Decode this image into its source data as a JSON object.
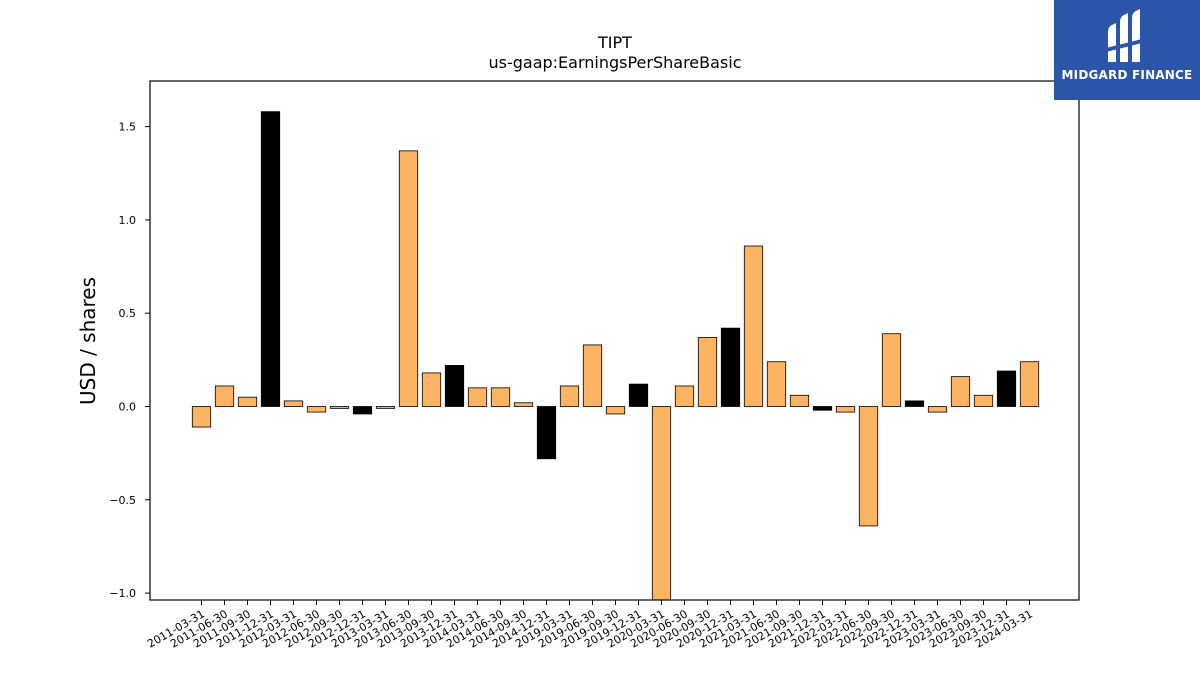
{
  "brand": {
    "name": "MIDGARD FINANCE",
    "background": "#2a55a8"
  },
  "chart_data": {
    "type": "bar",
    "title": "TIPT",
    "subtitle": "us-gaap:EarningsPerShareBasic",
    "xlabel": "",
    "ylabel": "USD / shares",
    "ylim": [
      -1.04,
      1.75
    ],
    "yticks": [
      -1.0,
      -0.5,
      0.0,
      0.5,
      1.0,
      1.5
    ],
    "ytick_labels": [
      "−1.0",
      "−0.5",
      "0.0",
      "0.5",
      "1.0",
      "1.5"
    ],
    "grid": false,
    "colors": {
      "quarter": "#fdb462",
      "year_end": "#000000",
      "edge": "#000000"
    },
    "categories": [
      "2011-03-31",
      "2011-06-30",
      "2011-09-30",
      "2011-12-31",
      "2012-03-31",
      "2012-06-30",
      "2012-09-30",
      "2012-12-31",
      "2013-03-31",
      "2013-06-30",
      "2013-09-30",
      "2013-12-31",
      "2014-03-31",
      "2014-06-30",
      "2014-09-30",
      "2014-12-31",
      "2019-03-31",
      "2019-06-30",
      "2019-09-30",
      "2019-12-31",
      "2020-03-31",
      "2020-06-30",
      "2020-09-30",
      "2020-12-31",
      "2021-03-31",
      "2021-06-30",
      "2021-09-30",
      "2021-12-31",
      "2022-03-31",
      "2022-06-30",
      "2022-09-30",
      "2022-12-31",
      "2023-03-31",
      "2023-06-30",
      "2023-09-30",
      "2023-12-31",
      "2024-03-31"
    ],
    "values": [
      -0.11,
      0.11,
      0.05,
      1.58,
      0.03,
      -0.03,
      -0.01,
      -0.04,
      -0.01,
      1.37,
      0.18,
      0.22,
      0.1,
      0.1,
      0.02,
      -0.28,
      0.11,
      0.33,
      -0.04,
      0.12,
      -1.04,
      0.11,
      0.37,
      0.42,
      0.86,
      0.24,
      0.06,
      -0.02,
      -0.03,
      -0.64,
      0.39,
      0.03,
      -0.03,
      0.16,
      0.06,
      0.19,
      0.24
    ],
    "year_end": [
      false,
      false,
      false,
      true,
      false,
      false,
      false,
      true,
      false,
      false,
      false,
      true,
      false,
      false,
      false,
      true,
      false,
      false,
      false,
      true,
      false,
      false,
      false,
      true,
      false,
      false,
      false,
      true,
      false,
      false,
      false,
      true,
      false,
      false,
      false,
      true,
      false
    ]
  }
}
